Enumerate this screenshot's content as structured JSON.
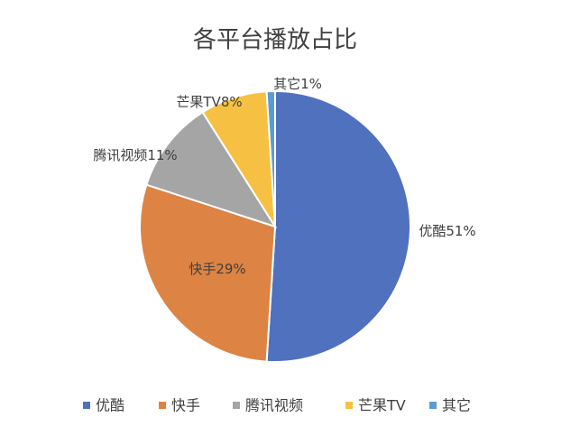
{
  "chart_data": {
    "type": "pie",
    "title": "各平台播放占比",
    "categories": [
      "优酷",
      "快手",
      "腾讯视频",
      "芒果TV",
      "其它"
    ],
    "values": [
      51,
      29,
      11,
      8,
      1
    ],
    "value_labels": [
      "51%",
      "29%",
      "11%",
      "8%",
      "1%"
    ],
    "colors": [
      "#4f71be",
      "#dd8344",
      "#a5a5a5",
      "#f6c142",
      "#5b9bd5"
    ],
    "legend": "bottom"
  }
}
